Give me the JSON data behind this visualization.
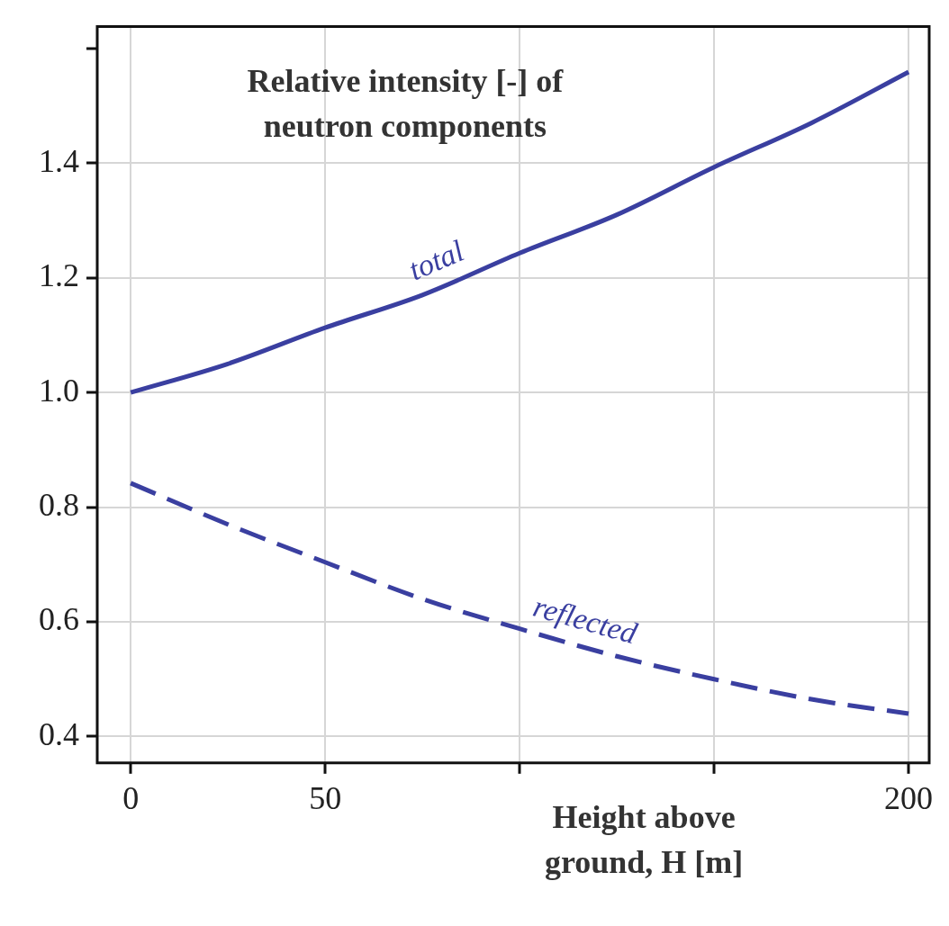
{
  "chart_data": {
    "type": "line",
    "title": "Relative intensity [-] of neutron components",
    "xlabel": "Height above ground, H [m]",
    "x": [
      0,
      25,
      50,
      75,
      100,
      125,
      150,
      175,
      200
    ],
    "series": [
      {
        "name": "total",
        "color": "#3a3fa0",
        "line_style": "solid",
        "values": [
          1.0,
          1.05,
          1.113,
          1.17,
          1.243,
          1.31,
          1.393,
          1.47,
          1.559
        ]
      },
      {
        "name": "reflected",
        "color": "#3a3fa0",
        "line_style": "dashed",
        "values": [
          0.842,
          0.77,
          0.704,
          0.64,
          0.588,
          0.54,
          0.5,
          0.465,
          0.44
        ]
      }
    ],
    "xlim": [
      -8.6,
      205.3
    ],
    "ylim": [
      0.354,
      1.638
    ],
    "xticks": [
      0,
      50,
      {
        "value": 100,
        "label": null
      },
      {
        "value": 150,
        "label": null
      },
      200
    ],
    "yticks": [
      {
        "value": 0.4,
        "label": "0.4"
      },
      {
        "value": 0.6,
        "label": "0.6"
      },
      {
        "value": 0.8,
        "label": "0.8"
      },
      {
        "value": 1,
        "label": "1.0"
      },
      {
        "value": 1.2,
        "label": "1.2"
      },
      {
        "value": 1.4,
        "label": "1.4"
      },
      {
        "value": 1.6,
        "label": null
      }
    ],
    "grid": true,
    "legend": false,
    "marker": "none"
  }
}
